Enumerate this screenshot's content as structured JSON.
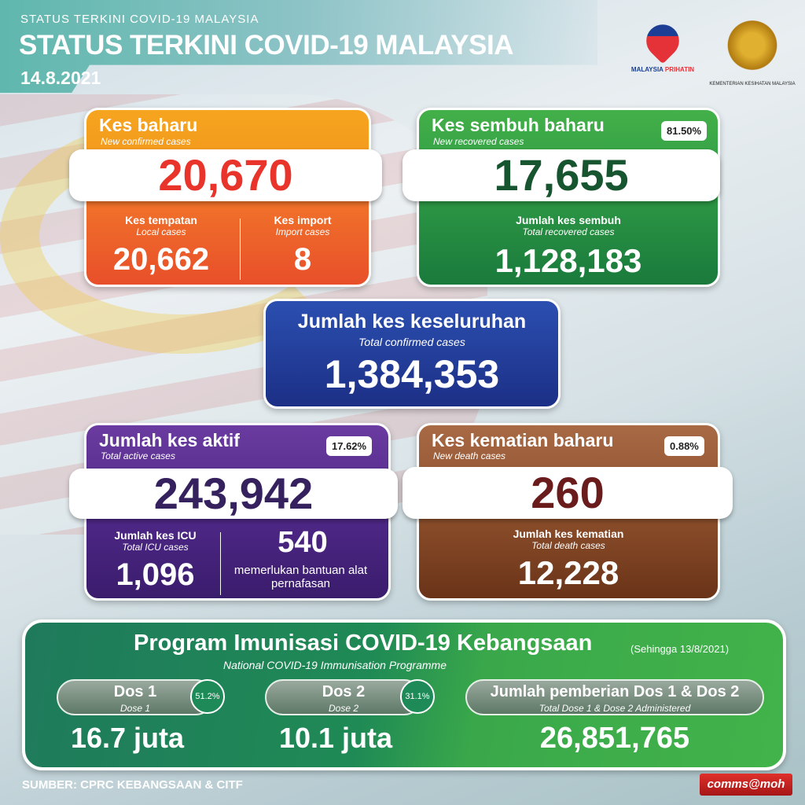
{
  "header": {
    "kicker": "STATUS TERKINI COVID-19 MALAYSIA",
    "title": "STATUS TERKINI COVID-19 MALAYSIA",
    "date": "14.8.2021"
  },
  "logos": {
    "prihatin": "MALAYSIA PRIHATIN",
    "prihatin_a": "MALAYSIA",
    "prihatin_b": "PRIHATIN",
    "kkm": "KEMENTERIAN KESIHATAN MALAYSIA"
  },
  "new_cases": {
    "title": "Kes baharu",
    "subtitle": "New confirmed cases",
    "value": "20,670",
    "local_label": "Kes tempatan",
    "local_sub": "Local cases",
    "local_value": "20,662",
    "import_label": "Kes import",
    "import_sub": "Import cases",
    "import_value": "8"
  },
  "recovered": {
    "title": "Kes sembuh baharu",
    "subtitle": "New recovered cases",
    "badge": "81.50%",
    "value": "17,655",
    "total_label": "Jumlah kes sembuh",
    "total_sub": "Total recovered cases",
    "total_value": "1,128,183"
  },
  "total": {
    "title": "Jumlah kes keseluruhan",
    "subtitle": "Total confirmed cases",
    "value": "1,384,353"
  },
  "active": {
    "title": "Jumlah kes aktif",
    "subtitle": "Total active cases",
    "badge": "17.62%",
    "value": "243,942",
    "icu_label": "Jumlah kes ICU",
    "icu_sub": "Total ICU cases",
    "icu_value": "1,096",
    "vent_value": "540",
    "vent_label": "memerlukan bantuan alat pernafasan"
  },
  "deaths": {
    "title": "Kes kematian baharu",
    "subtitle": "New death cases",
    "badge": "0.88%",
    "value": "260",
    "total_label": "Jumlah kes kematian",
    "total_sub": "Total death cases",
    "total_value": "12,228"
  },
  "vaccine": {
    "title": "Program Imunisasi COVID-19 Kebangsaan",
    "as_of": "(Sehingga 13/8/2021)",
    "subtitle": "National COVID-19 Immunisation Programme",
    "dose1": {
      "label": "Dos 1",
      "sub": "Dose 1",
      "pct": "51.2%",
      "value": "16.7 juta"
    },
    "dose2": {
      "label": "Dos 2",
      "sub": "Dose 2",
      "pct": "31.1%",
      "value": "10.1 juta"
    },
    "total": {
      "label": "Jumlah pemberian Dos 1 & Dos 2",
      "sub": "Total Dose 1 & Dose 2 Administered",
      "value": "26,851,765"
    }
  },
  "footer": {
    "source": "SUMBER: CPRC KEBANGSAAN & CITF",
    "brand": "comms@moh"
  },
  "colors": {
    "orange": "#f39a1e",
    "red_orange": "#ee5a2a",
    "green": "#2e9a45",
    "blue": "#23409c",
    "purple": "#4b2683",
    "brown": "#8a4d2a",
    "vaccine_green": "#3aa84a"
  }
}
